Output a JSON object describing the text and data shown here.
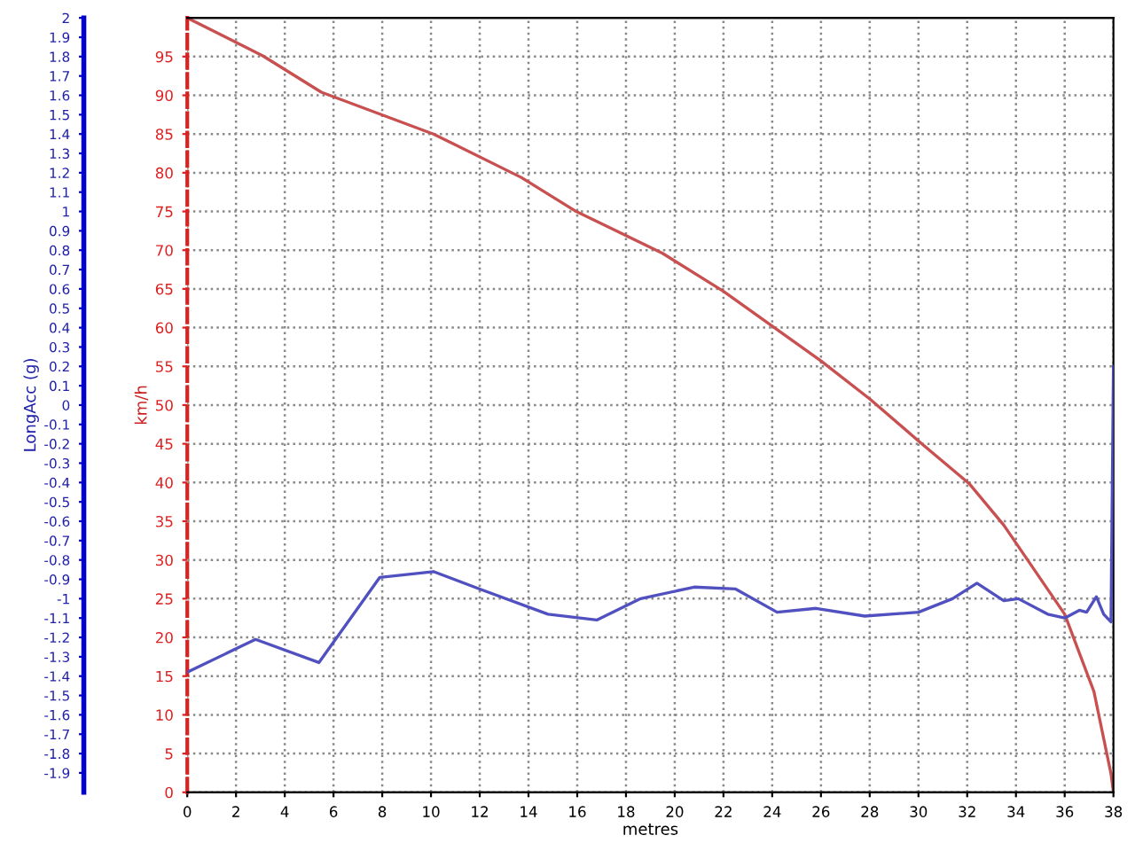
{
  "chart_data": {
    "type": "line",
    "xlabel": "metres",
    "ylabel": "km/h",
    "y2label": "LongAcc (g)",
    "xlim": [
      0,
      38
    ],
    "xticks": [
      0,
      2,
      4,
      6,
      8,
      10,
      12,
      14,
      16,
      18,
      20,
      22,
      24,
      26,
      28,
      30,
      32,
      34,
      36,
      38
    ],
    "ylim": [
      0,
      100
    ],
    "yticks": [
      0,
      5,
      10,
      15,
      20,
      25,
      30,
      35,
      40,
      45,
      50,
      55,
      60,
      65,
      70,
      75,
      80,
      85,
      90,
      95
    ],
    "y2lim": [
      -2,
      2
    ],
    "y2ticks": [
      -1.9,
      -1.8,
      -1.7,
      -1.6,
      -1.5,
      -1.4,
      -1.3,
      -1.2,
      -1.1,
      -1,
      -0.9,
      -0.8,
      -0.7,
      -0.6,
      -0.5,
      -0.4,
      -0.3,
      -0.2,
      -0.1,
      0,
      0.1,
      0.2,
      0.3,
      0.4,
      0.5,
      0.6,
      0.7,
      0.8,
      0.9,
      1,
      1.1,
      1.2,
      1.3,
      1.4,
      1.5,
      1.6,
      1.7,
      1.8,
      1.9,
      2
    ],
    "grid": true,
    "marker": "none",
    "line_style": "solid",
    "series": [
      {
        "color": "#c85050",
        "axis": "y",
        "x": [
          0,
          3.1,
          5.5,
          10.1,
          13.7,
          15.9,
          19.5,
          22.0,
          24.0,
          26.0,
          28.0,
          30.1,
          32.1,
          33.5,
          36.0,
          37.2,
          37.9,
          38
        ],
        "values": [
          100,
          95.1,
          90.4,
          85.0,
          79.4,
          75.1,
          69.6,
          64.7,
          60.2,
          55.7,
          50.8,
          45.1,
          39.8,
          34.5,
          23.0,
          13.0,
          2.4,
          0
        ]
      },
      {
        "color": "#5050c0",
        "axis": "y2",
        "x": [
          0,
          2.8,
          5.4,
          7.9,
          10.1,
          12.0,
          14.8,
          16.8,
          18.6,
          20.8,
          22.5,
          24.2,
          25.8,
          27.8,
          30.0,
          31.4,
          32.4,
          33.5,
          34.1,
          35.3,
          36.0,
          36.6,
          36.9,
          37.3,
          37.6,
          37.9,
          38
        ],
        "values": [
          -1.38,
          -1.21,
          -1.33,
          -0.89,
          -0.86,
          -0.95,
          -1.08,
          -1.11,
          -1.0,
          -0.94,
          -0.95,
          -1.07,
          -1.05,
          -1.09,
          -1.07,
          -1.0,
          -0.92,
          -1.01,
          -1.0,
          -1.08,
          -1.1,
          -1.06,
          -1.07,
          -0.99,
          -1.08,
          -1.12,
          0.2
        ]
      }
    ]
  }
}
